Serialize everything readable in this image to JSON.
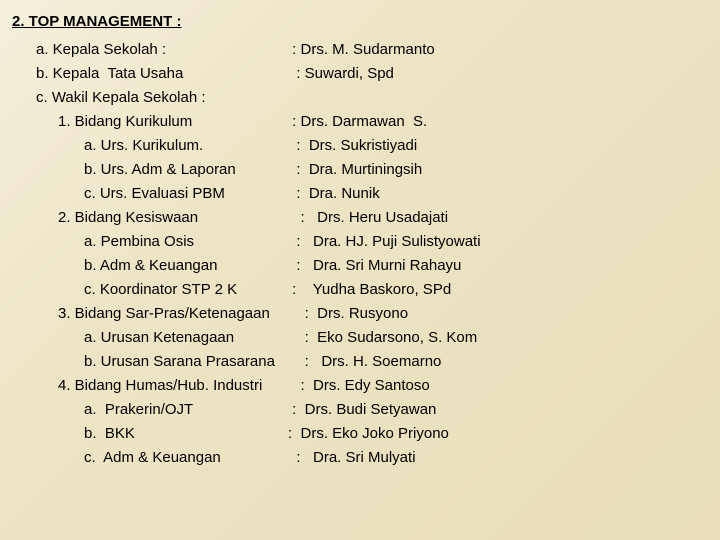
{
  "colors": {
    "text": "#000000",
    "bg_start": "#f5f0db",
    "bg_end": "#e8dfb8"
  },
  "typography": {
    "font_family": "Arial, sans-serif",
    "font_size_pt": 11,
    "title_bold": true,
    "title_underline": true
  },
  "title": "2. TOP MANAGEMENT :",
  "a": {
    "label": "a. Kepala Sekolah :",
    "value": " : Drs. M. Sudarmanto"
  },
  "b": {
    "label": "b. Kepala  Tata Usaha",
    "value": "  : Suwardi, Spd"
  },
  "c": {
    "label": "c. Wakil Kepala Sekolah :"
  },
  "s1": {
    "label": "1. Bidang Kurikulum",
    "value": " : Drs. Darmawan  S."
  },
  "s1a": {
    "label": "a. Urs. Kurikulum.",
    "value": "  :  Drs. Sukristiyadi"
  },
  "s1b": {
    "label": "b. Urs. Adm & Laporan",
    "value": "  :  Dra. Murtiningsih"
  },
  "s1c": {
    "label": "c. Urs. Evaluasi PBM",
    "value": "  :  Dra. Nunik"
  },
  "s2": {
    "label": "2. Bidang Kesiswaan",
    "value": "   :   Drs. Heru Usadajati"
  },
  "s2a": {
    "label": "a. Pembina Osis",
    "value": "  :   Dra. HJ. Puji Sulistyowati"
  },
  "s2b": {
    "label": "b. Adm & Keuangan",
    "value": "  :   Dra. Sri Murni Rahayu"
  },
  "s2c": {
    "label": "c. Koordinator STP 2 K",
    "value": " :    Yudha Baskoro, SPd"
  },
  "s3": {
    "label": "3. Bidang Sar-Pras/Ketenagaan",
    "value": "    :  Drs. Rusyono"
  },
  "s3a": {
    "label": "a. Urusan Ketenagaan",
    "value": "    :  Eko Sudarsono, S. Kom"
  },
  "s3b": {
    "label": "b. Urusan Sarana Prasarana",
    "value": "    :   Drs. H. Soemarno"
  },
  "s4": {
    "label": "4. Bidang Humas/Hub. Industri",
    "value": "   :  Drs. Edy Santoso"
  },
  "s4a": {
    "label": "a.  Prakerin/OJT",
    "value": " :  Drs. Budi Setyawan"
  },
  "s4b": {
    "label": "b.  BKK",
    "value": ":  Drs. Eko Joko Priyono"
  },
  "s4c": {
    "label": "c.  Adm & Keuangan",
    "value": "  :   Dra. Sri Mulyati"
  }
}
